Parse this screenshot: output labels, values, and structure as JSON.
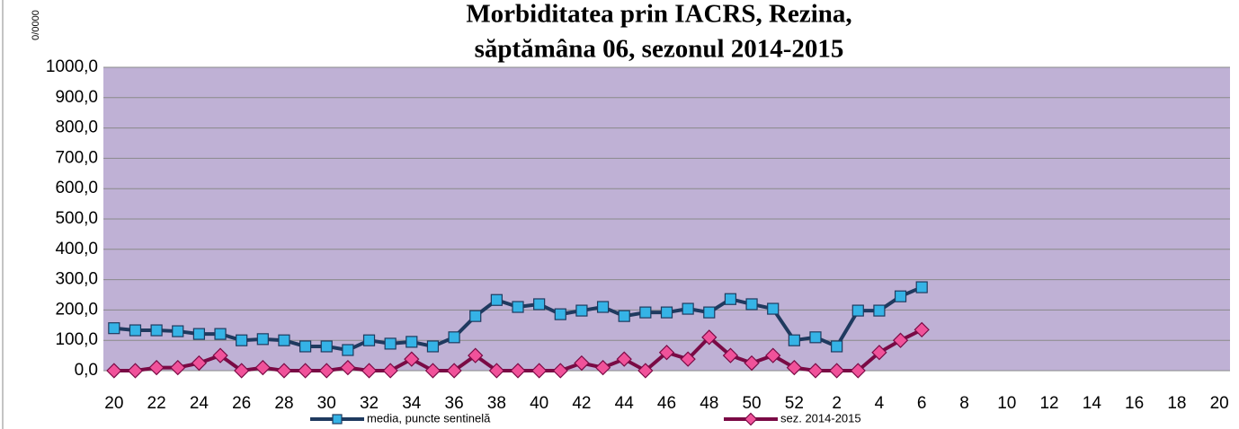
{
  "chart_data": {
    "type": "line",
    "title": [
      "Morbiditatea prin IACRS, Rezina,",
      "săptămâna 06, sezonul  2014-2015"
    ],
    "y_label": "0/0000",
    "categories": [
      20,
      null,
      22,
      null,
      24,
      null,
      26,
      null,
      28,
      null,
      30,
      null,
      32,
      null,
      34,
      null,
      36,
      null,
      38,
      null,
      40,
      null,
      42,
      null,
      44,
      null,
      46,
      null,
      48,
      null,
      50,
      null,
      52,
      null,
      2,
      null,
      4,
      null,
      6,
      null,
      8,
      null,
      10,
      null,
      12,
      null,
      14,
      null,
      16,
      null,
      18,
      null,
      20
    ],
    "series": [
      {
        "name": "media, puncte sentinelă",
        "color": "#1f3a5f",
        "marker_color": "#35b3e6",
        "marker": "square",
        "values": [
          140,
          133,
          133,
          130,
          121,
          121,
          100,
          104,
          100,
          80,
          80,
          68,
          100,
          89,
          95,
          80,
          110,
          180,
          233,
          210,
          219,
          186,
          198,
          210,
          180,
          192,
          192,
          204,
          192,
          236,
          219,
          204,
          100,
          110,
          80,
          198,
          198,
          245,
          275,
          null,
          null,
          null,
          null,
          null,
          null,
          null,
          null,
          null,
          null,
          null,
          null,
          null,
          null
        ]
      },
      {
        "name": "sez. 2014-2015",
        "color": "#7a0a45",
        "marker_color": "#f0529a",
        "marker": "diamond",
        "values": [
          0,
          0,
          10,
          10,
          25,
          50,
          0,
          10,
          0,
          0,
          0,
          10,
          0,
          0,
          38,
          0,
          0,
          50,
          0,
          0,
          0,
          0,
          25,
          10,
          38,
          0,
          60,
          38,
          110,
          50,
          25,
          50,
          10,
          0,
          0,
          0,
          60,
          100,
          135,
          null,
          null,
          null,
          null,
          null,
          null,
          null,
          null,
          null,
          null,
          null,
          null,
          null,
          null
        ]
      }
    ],
    "ylim": [
      0,
      1000
    ],
    "yticks": [
      {
        "value": 0,
        "label": "0,0"
      },
      {
        "value": 100,
        "label": "100,0"
      },
      {
        "value": 200,
        "label": "200,0"
      },
      {
        "value": 300,
        "label": "300,0"
      },
      {
        "value": 400,
        "label": "400,0"
      },
      {
        "value": 500,
        "label": "500,0"
      },
      {
        "value": 600,
        "label": "600,0"
      },
      {
        "value": 700,
        "label": "700,0"
      },
      {
        "value": 800,
        "label": "800,0"
      },
      {
        "value": 900,
        "label": "900,0"
      },
      {
        "value": 1000,
        "label": "1000,0"
      }
    ],
    "grid": true,
    "legend": "bottom"
  }
}
